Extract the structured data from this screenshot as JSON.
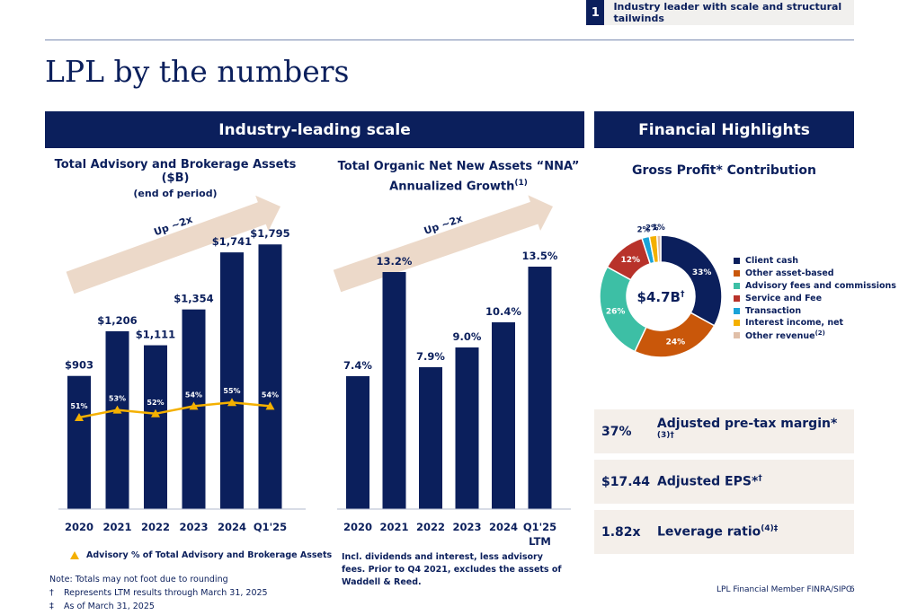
{
  "topbar": {
    "number": "1",
    "text": "Industry leader with scale and structural tailwinds"
  },
  "title": "LPL by the numbers",
  "banners": {
    "left": "Industry-leading scale",
    "right": "Financial Highlights"
  },
  "assets_chart_title": "Total Advisory and Brokerage Assets ($B)",
  "assets_chart_subtitle": "(end of period)",
  "nna_chart_title_line1": "Total Organic Net New Assets “NNA”",
  "nna_chart_title_line2": "Annualized Growth",
  "nna_chart_title_sup": "(1)",
  "arrow_label": "Up ~2x",
  "arrow_label_2": "Up ~2x",
  "gross_profit_title": "Gross Profit* Contribution",
  "donut_center": "$4.7B",
  "donut_center_sup": "†",
  "adv_legend_label": "Advisory % of Total Advisory and Brokerage Assets",
  "nna_note": "Incl. dividends and interest, less advisory fees. Prior to Q4 2021, excludes the assets of Waddell & Reed.",
  "highlights": [
    {
      "value": "37%",
      "label": "Adjusted pre-tax margin*",
      "sup": "(3)†"
    },
    {
      "value": "$17.44",
      "label": "Adjusted EPS*",
      "sup": "†"
    },
    {
      "value": "1.82x",
      "label": "Leverage ratio",
      "sup": "(4)‡"
    }
  ],
  "notes": {
    "line1": "Note: Totals may not foot due to rounding",
    "line2_sym": "†",
    "line2": "Represents LTM results through March 31, 2025",
    "line3_sym": "‡",
    "line3": "As of March 31, 2025"
  },
  "footer": {
    "company": "LPL Financial Member FINRA/SIPC",
    "page": "6"
  },
  "colors": {
    "navy": "#0b1f5c",
    "arrow": "#ecd9c9",
    "line": "#f4b000",
    "client_cash": "#0b1f5c",
    "other_asset_based": "#c9570a",
    "advisory_fees": "#3dbfa5",
    "service_fee": "#b8322a",
    "transaction": "#1aa3d8",
    "interest_income": "#f4b000",
    "other_revenue": "#e0bfa8"
  },
  "chart_data": [
    {
      "type": "bar",
      "title": "Total Advisory and Brokerage Assets ($B)",
      "subtitle": "(end of period)",
      "categories": [
        "2020",
        "2021",
        "2022",
        "2023",
        "2024",
        "Q1'25"
      ],
      "series": [
        {
          "values": [
            903,
            1206,
            1111,
            1354,
            1741,
            1795
          ],
          "labels": [
            "$903",
            "$1,206",
            "$1,111",
            "$1,354",
            "$1,741",
            "$1,795"
          ]
        },
        {
          "name": "Advisory % of Total Advisory and Brokerage Assets",
          "type": "line",
          "values": [
            51,
            53,
            52,
            54,
            55,
            54
          ],
          "labels": [
            "51%",
            "53%",
            "52%",
            "54%",
            "55%",
            "54%"
          ]
        }
      ],
      "ylim": [
        0,
        1900
      ]
    },
    {
      "type": "bar",
      "title": "Total Organic Net New Assets “NNA” Annualized Growth(1)",
      "categories": [
        "2020",
        "2021",
        "2022",
        "2023",
        "2024",
        "Q1'25 LTM"
      ],
      "values": [
        7.4,
        13.2,
        7.9,
        9.0,
        10.4,
        13.5
      ],
      "labels": [
        "7.4%",
        "13.2%",
        "7.9%",
        "9.0%",
        "10.4%",
        "13.5%"
      ],
      "ylim": [
        0,
        16
      ]
    },
    {
      "type": "pie",
      "title": "Gross Profit* Contribution",
      "center_label": "$4.7B†",
      "categories": [
        "Client cash",
        "Other asset-based",
        "Advisory fees and commissions",
        "Service and Fee",
        "Transaction",
        "Interest income, net",
        "Other revenue(2)"
      ],
      "values": [
        33,
        24,
        26,
        12,
        2,
        2,
        1
      ],
      "labels": [
        "33%",
        "24%",
        "26%",
        "12%",
        "2%",
        "2%",
        "1%"
      ],
      "legend_position": "right"
    }
  ]
}
